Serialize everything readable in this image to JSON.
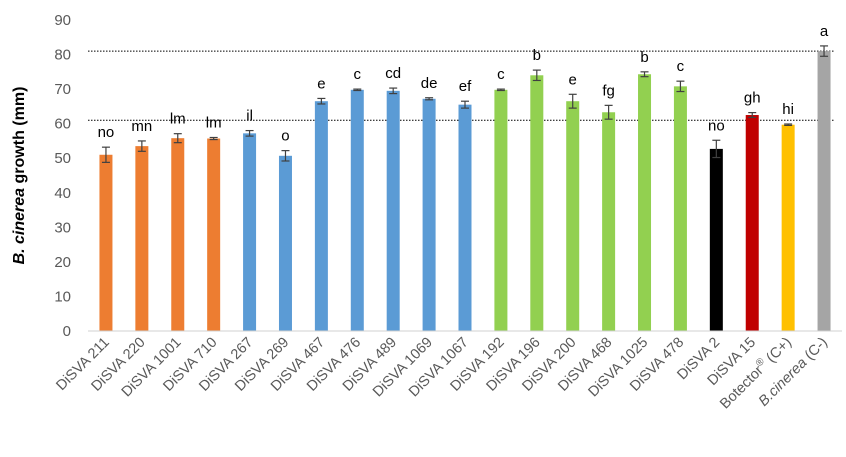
{
  "chart_data": {
    "type": "bar",
    "title": "",
    "ylabel": "B. cinerea growth (mm)",
    "ylabel_italic": "B. cinerea",
    "ylabel_rest": " growth (mm)",
    "xlabel": "",
    "ylim": [
      0,
      90
    ],
    "yticks": [
      0,
      10,
      20,
      30,
      40,
      50,
      60,
      70,
      80,
      90
    ],
    "reference_lines": [
      61,
      81
    ],
    "grid": false,
    "legend": "none",
    "bars": [
      {
        "label": "DiSVA 211",
        "value": 51,
        "error": 2.2,
        "letter": "no",
        "color": "#ED7D31"
      },
      {
        "label": "DiSVA 220",
        "value": 53.5,
        "error": 1.5,
        "letter": "mn",
        "color": "#ED7D31"
      },
      {
        "label": "DiSVA 1001",
        "value": 55.8,
        "error": 1.3,
        "letter": "lm",
        "color": "#ED7D31"
      },
      {
        "label": "DiSVA 710",
        "value": 55.7,
        "error": 0.3,
        "letter": "lm",
        "color": "#ED7D31"
      },
      {
        "label": "DiSVA 267",
        "value": 57.2,
        "error": 0.8,
        "letter": "il",
        "color": "#5B9BD5"
      },
      {
        "label": "DiSVA 269",
        "value": 50.7,
        "error": 1.5,
        "letter": "o",
        "color": "#5B9BD5"
      },
      {
        "label": "DiSVA 467",
        "value": 66.5,
        "error": 0.8,
        "letter": "e",
        "color": "#5B9BD5"
      },
      {
        "label": "DiSVA 476",
        "value": 69.8,
        "error": 0.2,
        "letter": "c",
        "color": "#5B9BD5"
      },
      {
        "label": "DiSVA 489",
        "value": 69.5,
        "error": 0.8,
        "letter": "cd",
        "color": "#5B9BD5"
      },
      {
        "label": "DiSVA 1069",
        "value": 67.2,
        "error": 0.3,
        "letter": "de",
        "color": "#5B9BD5"
      },
      {
        "label": "DiSVA 1067",
        "value": 65.5,
        "error": 1.0,
        "letter": "ef",
        "color": "#5B9BD5"
      },
      {
        "label": "DiSVA 192",
        "value": 69.8,
        "error": 0.2,
        "letter": "c",
        "color": "#92D050"
      },
      {
        "label": "DiSVA 196",
        "value": 74,
        "error": 1.5,
        "letter": "b",
        "color": "#92D050"
      },
      {
        "label": "DiSVA 200",
        "value": 66.5,
        "error": 2.0,
        "letter": "e",
        "color": "#92D050"
      },
      {
        "label": "DiSVA 468",
        "value": 63.3,
        "error": 2.0,
        "letter": "fg",
        "color": "#92D050"
      },
      {
        "label": "DiSVA 1025",
        "value": 74.3,
        "error": 0.7,
        "letter": "b",
        "color": "#92D050"
      },
      {
        "label": "DiSVA 478",
        "value": 70.8,
        "error": 1.5,
        "letter": "c",
        "color": "#92D050"
      },
      {
        "label": "DiSVA 2",
        "value": 52.7,
        "error": 2.5,
        "letter": "no",
        "color": "#000000"
      },
      {
        "label": "DiSVA 15",
        "value": 62.5,
        "error": 0.7,
        "letter": "gh",
        "color": "#C00000"
      },
      {
        "label": "Botector® (C+)",
        "label_main": "Botector",
        "label_sup": "®",
        "label_tail": " (C+)",
        "value": 59.7,
        "error": 0.2,
        "letter": "hi",
        "color": "#FFC000"
      },
      {
        "label": "B.cinerea (C-)",
        "label_italic": "B.cinerea",
        "label_tail": " (C-)",
        "value": 81,
        "error": 1.5,
        "letter": "a",
        "color": "#A5A5A5"
      }
    ]
  }
}
